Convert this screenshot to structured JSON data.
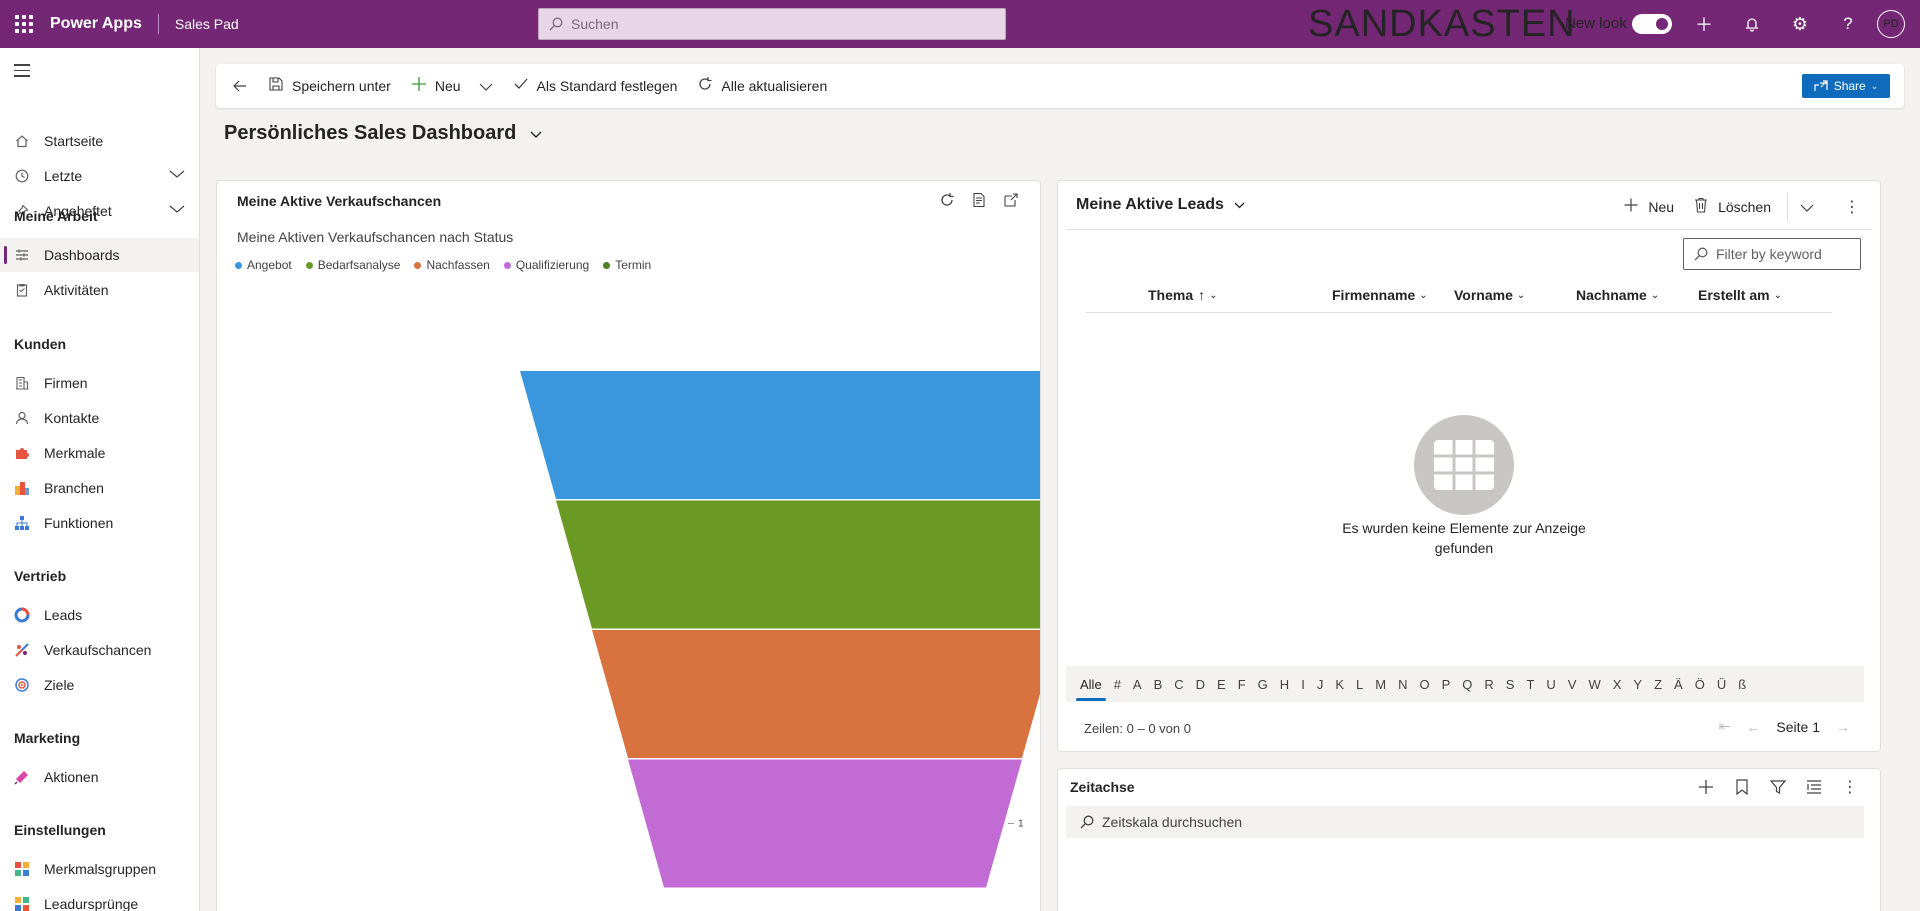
{
  "header": {
    "app_name": "Power Apps",
    "environment": "Sales Pad",
    "search_placeholder": "Suchen",
    "sandbox_label": "SANDKASTEN",
    "new_look_label": "New look",
    "avatar_initials": "PD"
  },
  "sidebar": {
    "items": [
      {
        "label": "Startseite",
        "icon": "home-icon"
      },
      {
        "label": "Letzte",
        "icon": "clock-icon",
        "expandable": true
      },
      {
        "label": "Angeheftet",
        "icon": "pin-icon",
        "expandable": true
      }
    ],
    "sections": [
      {
        "title": "Meine Arbeit",
        "items": [
          {
            "label": "Dashboards",
            "icon": "dashboard-icon",
            "selected": true
          },
          {
            "label": "Aktivitäten",
            "icon": "clipboard-icon"
          }
        ]
      },
      {
        "title": "Kunden",
        "items": [
          {
            "label": "Firmen",
            "icon": "building-icon"
          },
          {
            "label": "Kontakte",
            "icon": "person-icon"
          },
          {
            "label": "Merkmale",
            "icon": "puzzle-icon"
          },
          {
            "label": "Branchen",
            "icon": "industry-icon"
          },
          {
            "label": "Funktionen",
            "icon": "org-chart-icon"
          }
        ]
      },
      {
        "title": "Vertrieb",
        "items": [
          {
            "label": "Leads",
            "icon": "leads-icon"
          },
          {
            "label": "Verkaufschancen",
            "icon": "opportunity-icon"
          },
          {
            "label": "Ziele",
            "icon": "target-icon"
          }
        ]
      },
      {
        "title": "Marketing",
        "items": [
          {
            "label": "Aktionen",
            "icon": "campaign-icon"
          }
        ]
      },
      {
        "title": "Einstellungen",
        "items": [
          {
            "label": "Merkmalsgruppen",
            "icon": "groups-icon"
          },
          {
            "label": "Leadursprünge",
            "icon": "lead-source-icon"
          }
        ]
      }
    ]
  },
  "commandbar": {
    "save_as": "Speichern unter",
    "new": "Neu",
    "set_default": "Als Standard festlegen",
    "refresh_all": "Alle aktualisieren",
    "share": "Share"
  },
  "dashboard_title": "Persönliches Sales Dashboard",
  "chart_card": {
    "title": "Meine Aktive Verkaufschancen"
  },
  "chart_data": {
    "type": "funnel",
    "title": "Meine Aktiven Verkaufschancen nach Status",
    "legend": [
      "Angebot",
      "Bedarfsanalyse",
      "Nachfassen",
      "Qualifizierung",
      "Termin"
    ],
    "categories": [
      "Angebot",
      "Bedarfsanalyse",
      "Nachfassen",
      "Qualifizierung"
    ],
    "values": [
      1,
      1,
      1,
      1
    ],
    "colors": [
      "#3a96dd",
      "#6a9a23",
      "#d87340",
      "#c36bd4",
      "#4b7f21"
    ]
  },
  "leads_card": {
    "title": "Meine Aktive Leads",
    "new": "Neu",
    "delete": "Löschen",
    "filter_placeholder": "Filter by keyword",
    "columns": [
      "Thema",
      "Firmenname",
      "Vorname",
      "Nachname",
      "Erstellt am"
    ],
    "empty_text": "Es wurden keine Elemente zur Anzeige gefunden",
    "jumpbar": [
      "Alle",
      "#",
      "A",
      "B",
      "C",
      "D",
      "E",
      "F",
      "G",
      "H",
      "I",
      "J",
      "K",
      "L",
      "M",
      "N",
      "O",
      "P",
      "Q",
      "R",
      "S",
      "T",
      "U",
      "V",
      "W",
      "X",
      "Y",
      "Z",
      "Ä",
      "Ö",
      "Ü",
      "ß"
    ],
    "row_count": "Zeilen: 0 – 0 von 0",
    "page_label": "Seite 1"
  },
  "timeline": {
    "title": "Zeitachse",
    "search_placeholder": "Zeitskala durchsuchen"
  }
}
